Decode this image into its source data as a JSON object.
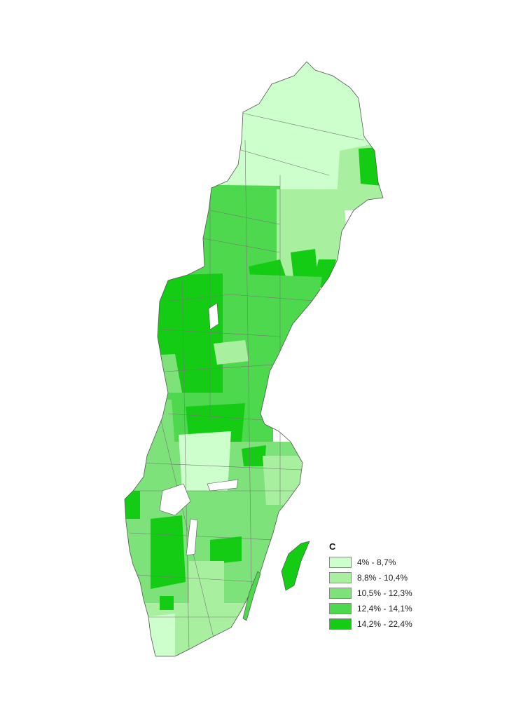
{
  "legend": {
    "title": "C",
    "classes": [
      {
        "label": "4% - 8,7%",
        "color": "#ccffcc"
      },
      {
        "label": "8,8% - 10,4%",
        "color": "#a8f0a0"
      },
      {
        "label": "10,5% - 12,3%",
        "color": "#7ee27a"
      },
      {
        "label": "12,4% - 14,1%",
        "color": "#4ed84e"
      },
      {
        "label": "14,2% - 22,4%",
        "color": "#14cc14"
      }
    ]
  },
  "map": {
    "region": "Sweden",
    "units": "municipalities",
    "border_color": "#555555",
    "water_color": "#ffffff"
  }
}
